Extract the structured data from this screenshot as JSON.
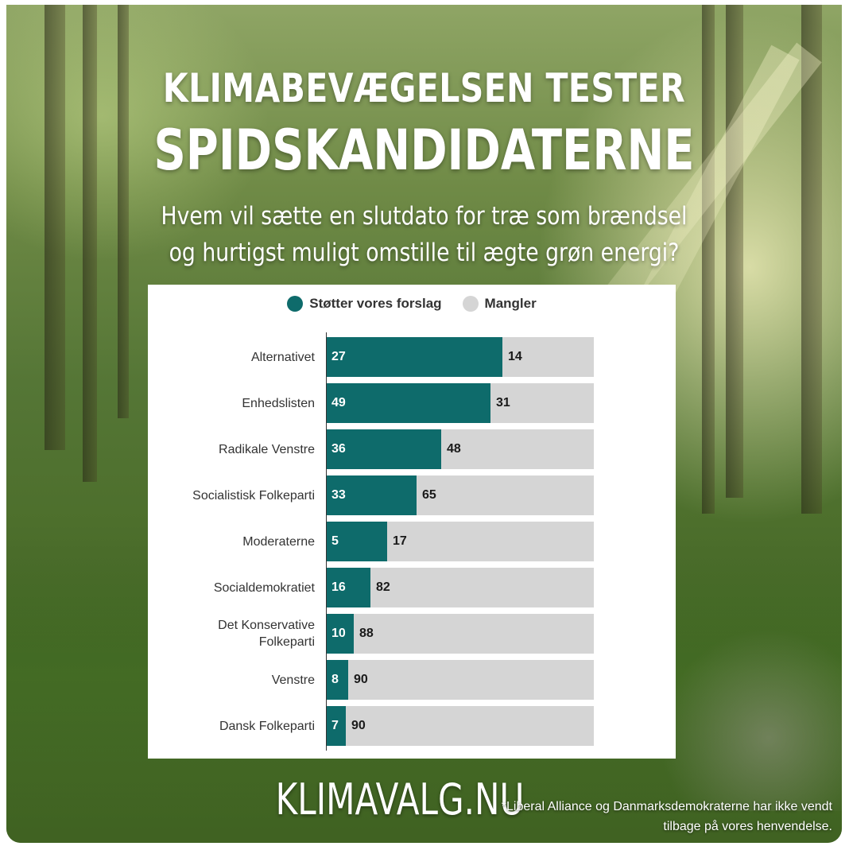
{
  "header": {
    "title_line1": "KLIMABEVÆGELSEN TESTER",
    "title_line2": "SPIDSKANDIDATERNE",
    "subtitle_line1": "Hvem vil sætte en slutdato for træ som brændsel",
    "subtitle_line2": "og hurtigst muligt omstille til ægte grøn energi?"
  },
  "footer": {
    "site": "KLIMAVALG.NU",
    "note": "*Liberal Alliance og Danmarksdemokraterne har ikke vendt tilbage på vores henvendelse."
  },
  "colors": {
    "support": "#0e6b6b",
    "missing": "#d5d5d5"
  },
  "chart_data": {
    "type": "bar",
    "orientation": "horizontal",
    "stacked": true,
    "legend_position": "top",
    "categories": [
      "Alternativet",
      "Enhedslisten",
      "Radikale Venstre",
      "Socialistisk Folkeparti",
      "Moderaterne",
      "Socialdemokratiet",
      "Det Konservative Folkeparti",
      "Venstre",
      "Dansk Folkeparti"
    ],
    "series": [
      {
        "name": "Støtter vores forslag",
        "color": "#0e6b6b",
        "values": [
          27,
          49,
          36,
          33,
          5,
          16,
          10,
          8,
          7
        ]
      },
      {
        "name": "Mangler",
        "color": "#d5d5d5",
        "values": [
          14,
          31,
          48,
          65,
          17,
          82,
          88,
          90,
          90
        ]
      }
    ],
    "support_share": [
      0.659,
      0.6125,
      0.4286,
      0.3367,
      0.2273,
      0.1633,
      0.102,
      0.0816,
      0.0722
    ]
  }
}
